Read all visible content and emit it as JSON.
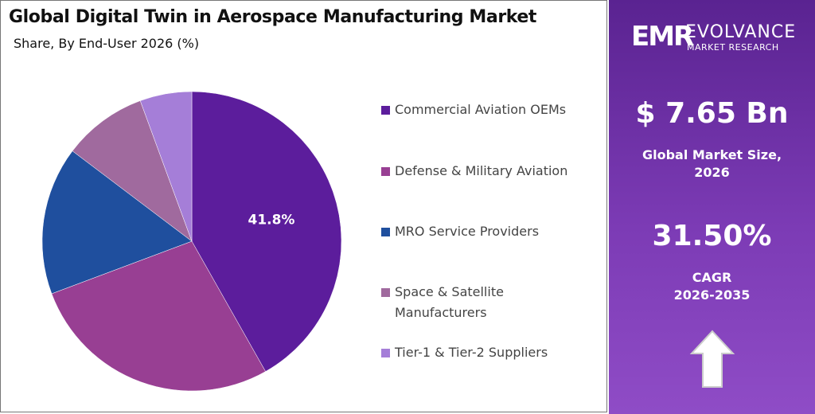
{
  "chart_data": {
    "type": "pie",
    "title": "Global Digital Twin in Aerospace Manufacturing Market",
    "subtitle": "Share, By End-User 2026 (%)",
    "categories": [
      "Commercial Aviation OEMs",
      "Defense & Military Aviation",
      "MRO Service Providers",
      "Space & Satellite Manufacturers",
      "Tier-1 & Tier-2 Suppliers"
    ],
    "values": [
      41.8,
      27.5,
      16.0,
      9.1,
      5.6
    ],
    "value_labels": [
      "41.8%",
      null,
      null,
      null,
      null
    ],
    "colors": [
      "#5c1d9c",
      "#983f93",
      "#1f4f9e",
      "#a06a9e",
      "#a57ed8"
    ]
  },
  "sidebar": {
    "logo_mark": "EMR",
    "logo_name": "EVOLVANCE",
    "logo_sub": "MARKET RESEARCH",
    "market_size": "$ 7.65 Bn",
    "market_size_label": "Global Market Size, 2026",
    "cagr": "31.50%",
    "cagr_label": "CAGR",
    "cagr_period": "2026-2035"
  }
}
